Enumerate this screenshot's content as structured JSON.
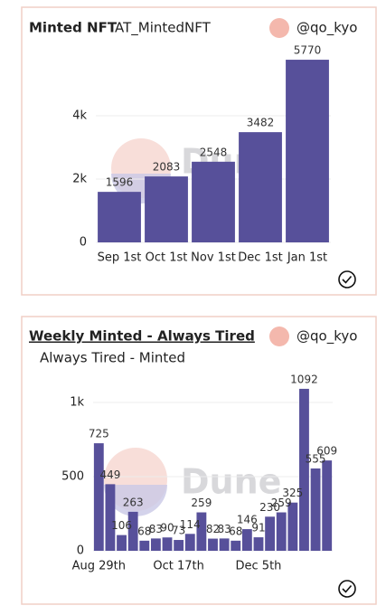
{
  "chart_data": [
    {
      "type": "bar",
      "title": "Minted NFT",
      "subtitle": "AT_MintedNFT",
      "user": "@qo_kyo",
      "watermark": "Dune",
      "categories": [
        "Sep 1st",
        "Oct 1st",
        "Nov 1st",
        "Dec 1st",
        "Jan 1st"
      ],
      "values": [
        1596,
        2083,
        2548,
        3482,
        5770
      ],
      "color": "#57509a",
      "ylim": [
        0,
        6000
      ],
      "yticks": [
        0,
        {
          "value": 2000,
          "label": "2k"
        },
        {
          "value": 4000,
          "label": "4k"
        }
      ],
      "grid": true
    },
    {
      "type": "bar",
      "title": "Weekly Minted - Always Tired",
      "subtitle": "Always Tired - Minted",
      "user": "@qo_kyo",
      "watermark": "Dune",
      "categories": [
        "Aug 29th",
        null,
        null,
        null,
        null,
        null,
        null,
        "Oct 17th",
        null,
        null,
        null,
        null,
        null,
        null,
        "Dec 5th",
        null,
        null,
        null,
        null,
        null,
        null
      ],
      "values": [
        725,
        449,
        106,
        263,
        68,
        83,
        90,
        73,
        114,
        259,
        82,
        83,
        68,
        146,
        91,
        230,
        259,
        325,
        1092,
        555,
        609
      ],
      "color": "#57509a",
      "ylim": [
        0,
        1100
      ],
      "yticks": [
        0,
        500,
        {
          "value": 1000,
          "label": "1k"
        }
      ],
      "grid": true
    }
  ]
}
